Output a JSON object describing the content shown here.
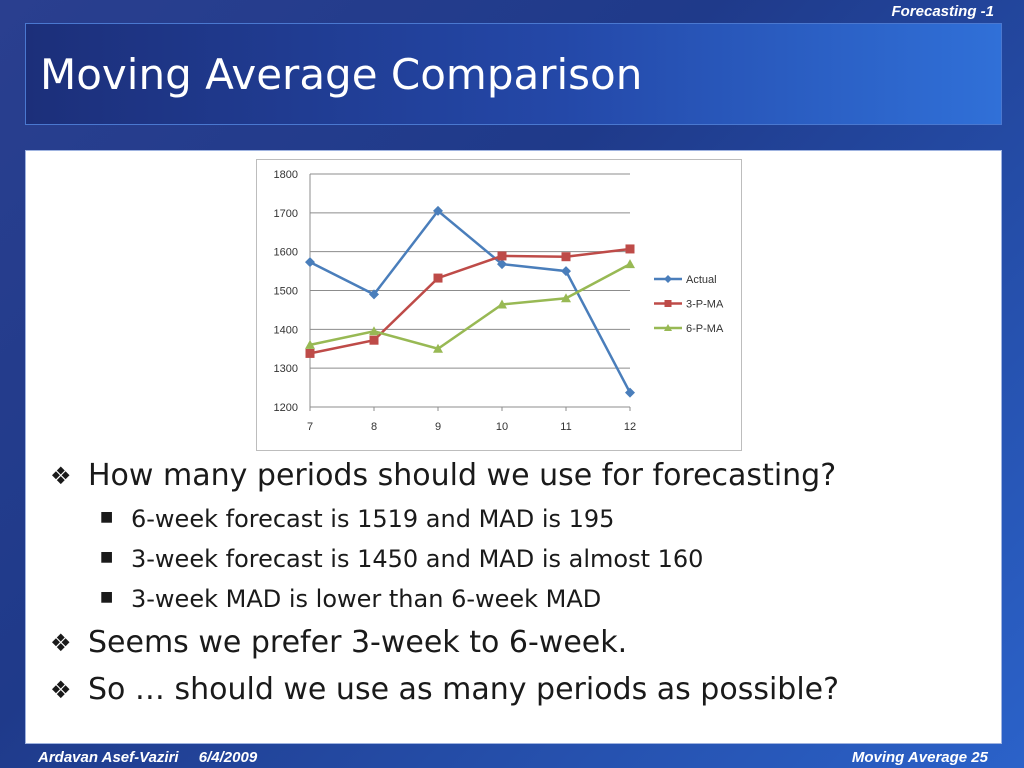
{
  "header": {
    "section": "Forecasting -1"
  },
  "slide": {
    "title": "Moving Average Comparison"
  },
  "bullets": [
    {
      "level": 1,
      "text": "How many periods should we use for forecasting?"
    },
    {
      "level": 2,
      "text": "6-week forecast is 1519 and MAD is 195"
    },
    {
      "level": 2,
      "text": "3-week forecast is 1450  and MAD is almost 160"
    },
    {
      "level": 2,
      "text": "3-week MAD is lower than 6-week MAD"
    },
    {
      "level": 1,
      "text": "Seems we prefer 3-week to 6-week."
    },
    {
      "level": 1,
      "text": "So … should we use as many periods as possible?"
    }
  ],
  "footer": {
    "author": "Ardavan Asef-Vaziri",
    "date": "6/4/2009",
    "topic": "Moving Average  25"
  },
  "icons": {
    "level1_bullet": "diamond-cluster-icon",
    "level2_bullet": "square-bullet-icon"
  },
  "chart_data": {
    "type": "line",
    "title": "",
    "xlabel": "",
    "ylabel": "",
    "categories": [
      "7",
      "8",
      "9",
      "10",
      "11",
      "12"
    ],
    "ylim": [
      1200,
      1800
    ],
    "yticks": [
      1200,
      1300,
      1400,
      1500,
      1600,
      1700,
      1800
    ],
    "grid": true,
    "legend_position": "right",
    "series": [
      {
        "name": "Actual",
        "color": "#4a7ebb",
        "marker": "diamond",
        "values": [
          1573,
          1490,
          1705,
          1568,
          1550,
          1237
        ]
      },
      {
        "name": "3-P-MA",
        "color": "#be4b48",
        "marker": "square",
        "values": [
          1338,
          1372,
          1532,
          1589,
          1587,
          1607
        ]
      },
      {
        "name": "6-P-MA",
        "color": "#98b954",
        "marker": "triangle",
        "values": [
          1360,
          1395,
          1350,
          1464,
          1480,
          1568
        ]
      }
    ]
  }
}
